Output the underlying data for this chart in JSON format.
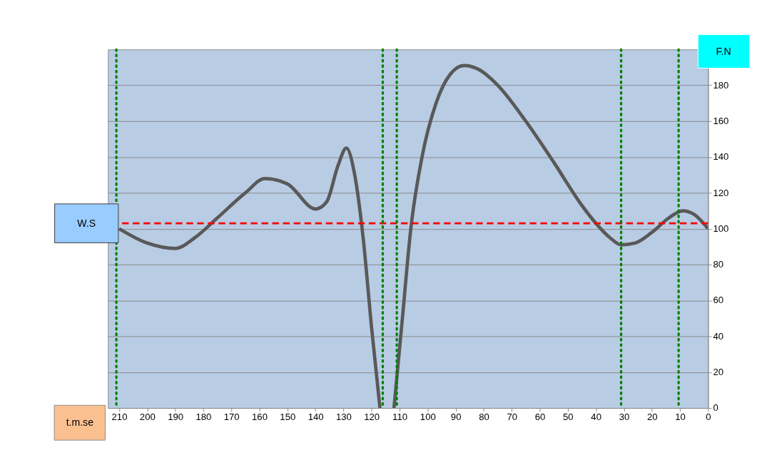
{
  "chart_data": {
    "type": "line",
    "xlabel": "t.m.se",
    "ylabel": "F.N",
    "xlim": [
      214,
      0
    ],
    "ylim": [
      0,
      200
    ],
    "xticks": [
      210,
      200,
      190,
      180,
      170,
      160,
      150,
      140,
      130,
      120,
      110,
      100,
      90,
      80,
      70,
      60,
      50,
      40,
      30,
      20,
      10,
      0
    ],
    "yticks": [
      0,
      20,
      40,
      60,
      80,
      100,
      120,
      140,
      160,
      180
    ],
    "grid": "y",
    "marker": "none",
    "line_style": "solid",
    "series": [
      {
        "color": "#595959",
        "x": [
          210,
          200,
          190,
          183,
          175,
          165,
          158,
          150,
          140,
          136,
          132,
          129,
          126,
          123,
          120,
          117,
          114.5,
          112,
          109,
          106,
          102,
          97,
          92,
          87,
          82,
          75,
          65,
          55,
          45,
          40,
          35,
          31,
          26,
          20,
          14,
          9,
          5,
          0
        ],
        "values": [
          100,
          92,
          89,
          95,
          106,
          120,
          128,
          125,
          111,
          115,
          135,
          145,
          130,
          95,
          45,
          0,
          null,
          0,
          50,
          100,
          140,
          170,
          186,
          191,
          189,
          180,
          160,
          137,
          113,
          103,
          95,
          91,
          92,
          98,
          106,
          110,
          108,
          100
        ]
      }
    ],
    "ref_lines": [
      {
        "axis": "y",
        "value": 103,
        "label": "W.S",
        "color": "#ff0000",
        "line_style": "dashed"
      },
      {
        "axis": "x",
        "value": 211,
        "color": "#008000",
        "line_style": "dotted"
      },
      {
        "axis": "x",
        "value": 116,
        "color": "#008000",
        "line_style": "dotted"
      },
      {
        "axis": "x",
        "value": 111,
        "color": "#008000",
        "line_style": "dotted"
      },
      {
        "axis": "x",
        "value": 31,
        "color": "#008000",
        "line_style": "dotted"
      },
      {
        "axis": "x",
        "value": 10.5,
        "color": "#008000",
        "line_style": "dotted"
      }
    ]
  }
}
